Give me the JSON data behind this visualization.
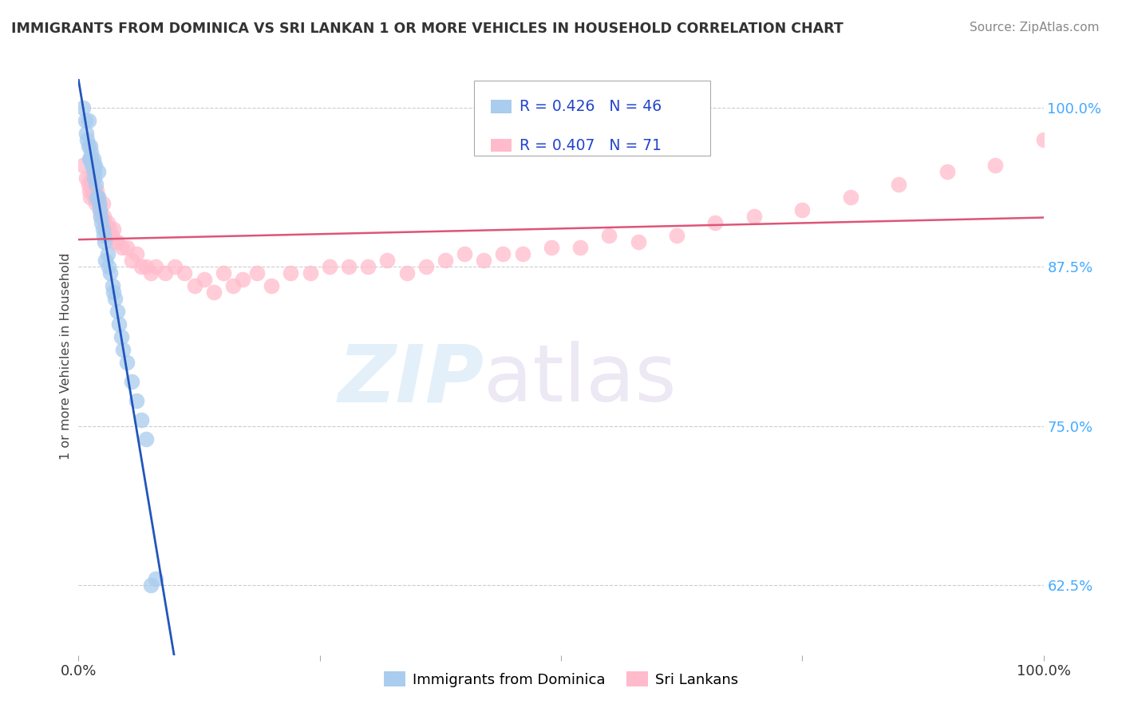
{
  "title": "IMMIGRANTS FROM DOMINICA VS SRI LANKAN 1 OR MORE VEHICLES IN HOUSEHOLD CORRELATION CHART",
  "source": "Source: ZipAtlas.com",
  "ylabel": "1 or more Vehicles in Household",
  "xlim": [
    0.0,
    1.0
  ],
  "ylim": [
    0.57,
    1.04
  ],
  "yticks": [
    0.625,
    0.75,
    0.875,
    1.0
  ],
  "ytick_labels": [
    "62.5%",
    "75.0%",
    "87.5%",
    "100.0%"
  ],
  "legend_labels": [
    "Immigrants from Dominica",
    "Sri Lankans"
  ],
  "blue_R": 0.426,
  "blue_N": 46,
  "pink_R": 0.407,
  "pink_N": 71,
  "blue_color": "#aaccee",
  "pink_color": "#ffbbcc",
  "blue_line_color": "#2255bb",
  "pink_line_color": "#dd5577",
  "blue_scatter_x": [
    0.005,
    0.007,
    0.008,
    0.009,
    0.01,
    0.01,
    0.011,
    0.012,
    0.012,
    0.013,
    0.013,
    0.014,
    0.015,
    0.015,
    0.016,
    0.016,
    0.017,
    0.018,
    0.019,
    0.02,
    0.02,
    0.021,
    0.022,
    0.023,
    0.024,
    0.025,
    0.026,
    0.027,
    0.028,
    0.03,
    0.031,
    0.033,
    0.035,
    0.036,
    0.038,
    0.04,
    0.042,
    0.044,
    0.046,
    0.05,
    0.055,
    0.06,
    0.065,
    0.07,
    0.075,
    0.08
  ],
  "blue_scatter_y": [
    1.0,
    0.99,
    0.98,
    0.975,
    0.99,
    0.97,
    0.96,
    0.97,
    0.96,
    0.965,
    0.96,
    0.955,
    0.96,
    0.955,
    0.95,
    0.945,
    0.955,
    0.94,
    0.93,
    0.95,
    0.93,
    0.925,
    0.92,
    0.915,
    0.91,
    0.905,
    0.9,
    0.895,
    0.88,
    0.885,
    0.875,
    0.87,
    0.86,
    0.855,
    0.85,
    0.84,
    0.83,
    0.82,
    0.81,
    0.8,
    0.785,
    0.77,
    0.755,
    0.74,
    0.625,
    0.63
  ],
  "pink_scatter_x": [
    0.005,
    0.008,
    0.01,
    0.011,
    0.012,
    0.013,
    0.014,
    0.015,
    0.016,
    0.017,
    0.018,
    0.019,
    0.02,
    0.021,
    0.022,
    0.023,
    0.025,
    0.026,
    0.027,
    0.028,
    0.03,
    0.032,
    0.034,
    0.036,
    0.038,
    0.04,
    0.045,
    0.05,
    0.055,
    0.06,
    0.065,
    0.07,
    0.075,
    0.08,
    0.09,
    0.1,
    0.11,
    0.12,
    0.13,
    0.14,
    0.15,
    0.16,
    0.17,
    0.185,
    0.2,
    0.22,
    0.24,
    0.26,
    0.28,
    0.3,
    0.32,
    0.34,
    0.36,
    0.38,
    0.4,
    0.42,
    0.44,
    0.46,
    0.49,
    0.52,
    0.55,
    0.58,
    0.62,
    0.66,
    0.7,
    0.75,
    0.8,
    0.85,
    0.9,
    0.95,
    1.0
  ],
  "pink_scatter_y": [
    0.955,
    0.945,
    0.94,
    0.935,
    0.93,
    0.945,
    0.94,
    0.935,
    0.93,
    0.93,
    0.925,
    0.935,
    0.93,
    0.925,
    0.92,
    0.915,
    0.925,
    0.915,
    0.91,
    0.905,
    0.91,
    0.905,
    0.9,
    0.905,
    0.895,
    0.895,
    0.89,
    0.89,
    0.88,
    0.885,
    0.875,
    0.875,
    0.87,
    0.875,
    0.87,
    0.875,
    0.87,
    0.86,
    0.865,
    0.855,
    0.87,
    0.86,
    0.865,
    0.87,
    0.86,
    0.87,
    0.87,
    0.875,
    0.875,
    0.875,
    0.88,
    0.87,
    0.875,
    0.88,
    0.885,
    0.88,
    0.885,
    0.885,
    0.89,
    0.89,
    0.9,
    0.895,
    0.9,
    0.91,
    0.915,
    0.92,
    0.93,
    0.94,
    0.95,
    0.955,
    0.975
  ]
}
